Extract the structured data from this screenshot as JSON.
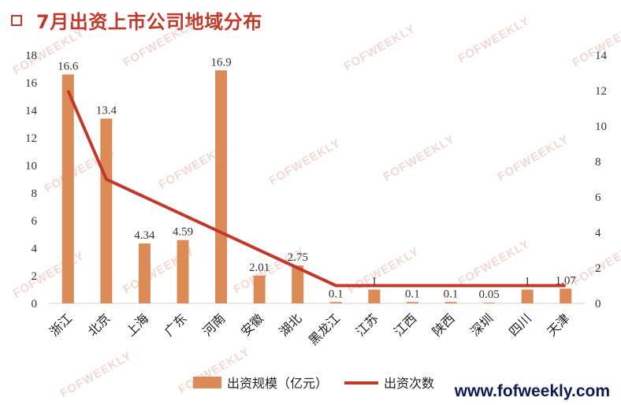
{
  "title": "7月出资上市公司地域分布",
  "site": "www.fofweekly.com",
  "watermark": "FOFWEEKLY",
  "colors": {
    "bar": "#dc8b57",
    "line": "#c0392b",
    "title": "#c0392b",
    "site": "#0d1b55"
  },
  "chart_data": {
    "type": "bar",
    "categories": [
      "浙江",
      "北京",
      "上海",
      "广东",
      "河南",
      "安徽",
      "湖北",
      "黑龙江",
      "江苏",
      "江西",
      "陕西",
      "深圳",
      "四川",
      "天津"
    ],
    "series": [
      {
        "name": "出资规模（亿元）",
        "type": "bar",
        "axis": "left",
        "values": [
          16.6,
          13.4,
          4.34,
          4.59,
          16.9,
          2.01,
          2.75,
          0.1,
          1,
          0.1,
          0.1,
          0.05,
          1,
          1.07
        ],
        "labels": [
          "16.6",
          "13.4",
          "4.34",
          "4.59",
          "16.9",
          "2.01",
          "2.75",
          "0.1",
          "1",
          "0.1",
          "0.1",
          "0.05",
          "1",
          "1.07"
        ]
      },
      {
        "name": "出资次数",
        "type": "line",
        "axis": "right",
        "values": [
          12,
          7,
          null,
          null,
          null,
          null,
          null,
          1,
          1,
          1,
          1,
          1,
          1,
          1
        ]
      }
    ],
    "y_left": {
      "min": 0,
      "max": 18,
      "step": 2,
      "ticks": [
        "0",
        "2",
        "4",
        "6",
        "8",
        "10",
        "12",
        "14",
        "16",
        "18"
      ]
    },
    "y_right": {
      "min": 0,
      "max": 14,
      "step": 2,
      "ticks": [
        "0",
        "2",
        "4",
        "6",
        "8",
        "10",
        "12",
        "14"
      ]
    },
    "legend_position": "bottom",
    "grid": false
  }
}
